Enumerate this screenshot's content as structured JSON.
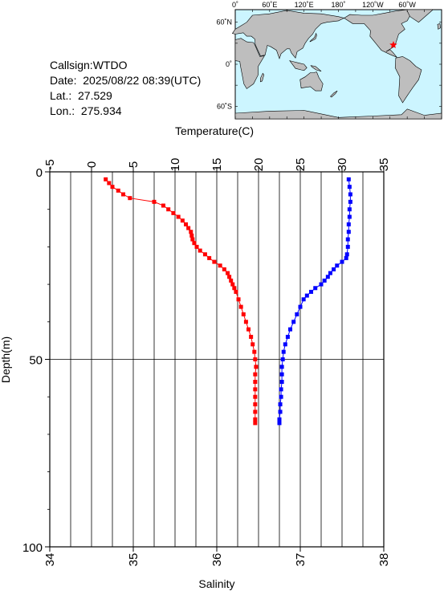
{
  "info": {
    "callsign": "Callsign:WTDO",
    "date": "Date:  2025/08/22 08:39(UTC)",
    "lat": "Lat.:  27.529",
    "lon": "Lon.:  275.934"
  },
  "map": {
    "top_labels": [
      "0˚",
      "60˚E",
      "120˚E",
      "180˚",
      "120˚W",
      "60˚W"
    ],
    "lat_labels": [
      "60˚N",
      "0˚",
      "60˚S"
    ],
    "ocean_color": "#ccf5ff",
    "land_color": "#bebebe",
    "marker_color": "#ff0000",
    "marker": {
      "lon": 275.934,
      "lat": 27.529
    }
  },
  "chart_data": {
    "type": "line",
    "title": "",
    "x_top": {
      "label": "Temperature(C)",
      "range": [
        -5,
        35
      ],
      "ticks": [
        -5,
        0,
        5,
        10,
        15,
        20,
        25,
        30,
        35
      ]
    },
    "x_bottom": {
      "label": "Salinity",
      "range": [
        34,
        38
      ],
      "ticks": [
        34,
        35,
        36,
        37,
        38
      ]
    },
    "y": {
      "label": "Depth(m)",
      "range": [
        0,
        100
      ],
      "ticks": [
        0,
        50,
        100
      ],
      "inverted": true
    },
    "grid": true,
    "series": [
      {
        "color": "#ff0000",
        "axis": "temperature",
        "points": [
          [
            1.7,
            2
          ],
          [
            2.1,
            3
          ],
          [
            2.5,
            4
          ],
          [
            3.2,
            5
          ],
          [
            3.8,
            6
          ],
          [
            4.6,
            7
          ],
          [
            7.5,
            8
          ],
          [
            8.6,
            9
          ],
          [
            9.2,
            10
          ],
          [
            9.8,
            11
          ],
          [
            10.4,
            12
          ],
          [
            10.9,
            13
          ],
          [
            11.3,
            14
          ],
          [
            11.6,
            15
          ],
          [
            11.9,
            16
          ],
          [
            12.0,
            17
          ],
          [
            12.1,
            18
          ],
          [
            12.3,
            19
          ],
          [
            12.6,
            20
          ],
          [
            13.0,
            21
          ],
          [
            13.6,
            22
          ],
          [
            14.1,
            23
          ],
          [
            14.7,
            24
          ],
          [
            15.4,
            25
          ],
          [
            15.9,
            26
          ],
          [
            16.3,
            27
          ],
          [
            16.5,
            28
          ],
          [
            16.7,
            29
          ],
          [
            16.9,
            30
          ],
          [
            17.1,
            31
          ],
          [
            17.3,
            32
          ],
          [
            17.6,
            34
          ],
          [
            17.9,
            36
          ],
          [
            18.2,
            38
          ],
          [
            18.5,
            40
          ],
          [
            18.8,
            42
          ],
          [
            19.1,
            44
          ],
          [
            19.3,
            46
          ],
          [
            19.5,
            48
          ],
          [
            19.6,
            50
          ],
          [
            19.7,
            52
          ],
          [
            19.6,
            54
          ],
          [
            19.6,
            56
          ],
          [
            19.6,
            58
          ],
          [
            19.6,
            60
          ],
          [
            19.6,
            62
          ],
          [
            19.6,
            64
          ],
          [
            19.6,
            66
          ],
          [
            19.6,
            67
          ]
        ]
      },
      {
        "color": "#0000ff",
        "axis": "salinity",
        "points": [
          [
            37.58,
            2
          ],
          [
            37.59,
            4
          ],
          [
            37.6,
            6
          ],
          [
            37.6,
            8
          ],
          [
            37.59,
            10
          ],
          [
            37.59,
            12
          ],
          [
            37.58,
            14
          ],
          [
            37.58,
            16
          ],
          [
            37.57,
            18
          ],
          [
            37.57,
            20
          ],
          [
            37.56,
            22
          ],
          [
            37.55,
            23
          ],
          [
            37.5,
            24
          ],
          [
            37.44,
            25
          ],
          [
            37.4,
            26
          ],
          [
            37.36,
            27
          ],
          [
            37.33,
            28
          ],
          [
            37.29,
            29
          ],
          [
            37.25,
            30
          ],
          [
            37.18,
            31
          ],
          [
            37.13,
            32
          ],
          [
            37.08,
            33
          ],
          [
            37.04,
            34
          ],
          [
            37.0,
            36
          ],
          [
            36.96,
            38
          ],
          [
            36.92,
            40
          ],
          [
            36.88,
            42
          ],
          [
            36.85,
            44
          ],
          [
            36.82,
            46
          ],
          [
            36.8,
            48
          ],
          [
            36.79,
            50
          ],
          [
            36.78,
            52
          ],
          [
            36.78,
            54
          ],
          [
            36.78,
            56
          ],
          [
            36.77,
            58
          ],
          [
            36.77,
            60
          ],
          [
            36.76,
            62
          ],
          [
            36.76,
            64
          ],
          [
            36.75,
            66
          ],
          [
            36.75,
            67
          ]
        ]
      }
    ]
  }
}
